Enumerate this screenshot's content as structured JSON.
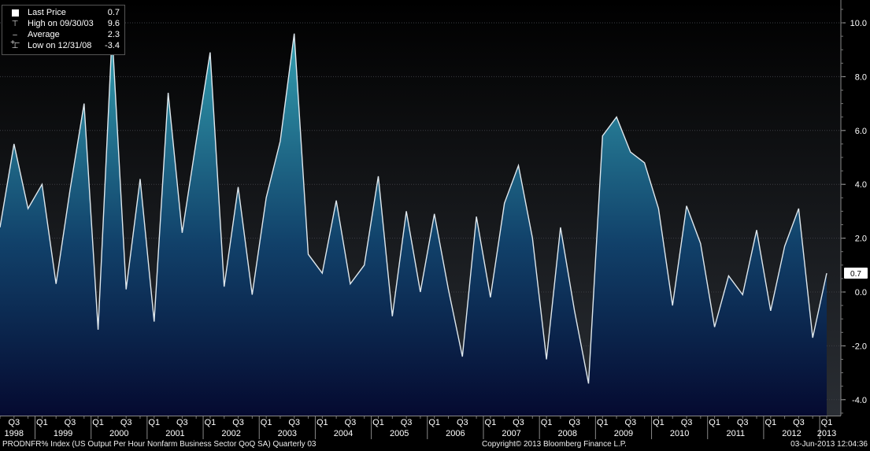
{
  "legend": {
    "last_label": "Last Price",
    "last_value": "0.7",
    "high_label": "High on 09/30/03",
    "high_value": "9.6",
    "avg_label": "Average",
    "avg_value": "2.3",
    "low_label": "Low on 12/31/08",
    "low_value": "-3.4"
  },
  "footer": {
    "index_desc": "PRODNFR% Index (US Output Per Hour Nonfarm Business Sector QoQ SA)  Quarterly 03",
    "copyright": "Copyright© 2013 Bloomberg Finance L.P.",
    "timestamp": "03-Jun-2013 12:04:36"
  },
  "colors": {
    "background_top": "#000000",
    "area_top": "#2f8fa3",
    "area_bottom": "#06123a",
    "line": "#d8e3ea",
    "grid": "#3a3a3a",
    "text": "#ffffff"
  },
  "chart_data": {
    "type": "area",
    "title": "",
    "ylim": [
      -4.5,
      11
    ],
    "yticks": [
      -4.0,
      -2.0,
      0.0,
      2.0,
      4.0,
      6.0,
      8.0,
      10.0
    ],
    "ytick_labels": [
      "-4.0",
      "-2.0",
      "0.0",
      "2.0",
      "4.0",
      "6.0",
      "8.0",
      "10.0"
    ],
    "last_value_label": "0.7",
    "grid": true,
    "legend_position": "top-left",
    "x": [
      "1998 Q2",
      "1998 Q3",
      "1998 Q4",
      "1999 Q1",
      "1999 Q2",
      "1999 Q3",
      "1999 Q4",
      "2000 Q1",
      "2000 Q2",
      "2000 Q3",
      "2000 Q4",
      "2001 Q1",
      "2001 Q2",
      "2001 Q3",
      "2001 Q4",
      "2002 Q1",
      "2002 Q2",
      "2002 Q3",
      "2002 Q4",
      "2003 Q1",
      "2003 Q2",
      "2003 Q3",
      "2003 Q4",
      "2004 Q1",
      "2004 Q2",
      "2004 Q3",
      "2004 Q4",
      "2005 Q1",
      "2005 Q2",
      "2005 Q3",
      "2005 Q4",
      "2006 Q1",
      "2006 Q2",
      "2006 Q3",
      "2006 Q4",
      "2007 Q1",
      "2007 Q2",
      "2007 Q3",
      "2007 Q4",
      "2008 Q1",
      "2008 Q2",
      "2008 Q3",
      "2008 Q4",
      "2009 Q1",
      "2009 Q2",
      "2009 Q3",
      "2009 Q4",
      "2010 Q1",
      "2010 Q2",
      "2010 Q3",
      "2010 Q4",
      "2011 Q1",
      "2011 Q2",
      "2011 Q3",
      "2011 Q4",
      "2012 Q1",
      "2012 Q2",
      "2012 Q3",
      "2012 Q4",
      "2013 Q1"
    ],
    "values": [
      2.4,
      5.5,
      3.1,
      4.0,
      0.3,
      3.8,
      7.0,
      -1.4,
      9.6,
      0.1,
      4.2,
      -1.1,
      7.4,
      2.2,
      5.6,
      8.9,
      0.2,
      3.9,
      -0.1,
      3.5,
      5.6,
      9.6,
      1.4,
      0.7,
      3.4,
      0.3,
      1.0,
      4.3,
      -0.9,
      3.0,
      0.0,
      2.9,
      0.1,
      -2.4,
      2.8,
      -0.2,
      3.3,
      4.7,
      2.0,
      -2.5,
      2.4,
      -0.7,
      -3.4,
      5.8,
      6.5,
      5.2,
      4.8,
      3.1,
      -0.5,
      3.2,
      1.8,
      -1.3,
      0.6,
      -0.1,
      2.3,
      -0.7,
      1.7,
      3.1,
      -1.7,
      0.7
    ],
    "x_quarter_labels": [
      "Q3",
      "Q1",
      "Q3",
      "Q1",
      "Q3",
      "Q1",
      "Q3",
      "Q1",
      "Q3",
      "Q1",
      "Q3",
      "Q1",
      "Q3",
      "Q1",
      "Q3",
      "Q1",
      "Q3",
      "Q1",
      "Q3",
      "Q1",
      "Q3",
      "Q1",
      "Q3",
      "Q1",
      "Q3",
      "Q1",
      "Q3",
      "Q1",
      "Q3",
      "Q1"
    ],
    "x_quarter_index": [
      1,
      3,
      5,
      7,
      9,
      11,
      13,
      15,
      17,
      19,
      21,
      23,
      25,
      27,
      29,
      31,
      33,
      35,
      37,
      39,
      41,
      43,
      45,
      47,
      49,
      51,
      53,
      55,
      57,
      59
    ],
    "x_year_labels": [
      "1998",
      "1999",
      "2000",
      "2001",
      "2002",
      "2003",
      "2004",
      "2005",
      "2006",
      "2007",
      "2008",
      "2009",
      "2010",
      "2011",
      "2012",
      "2013"
    ]
  }
}
